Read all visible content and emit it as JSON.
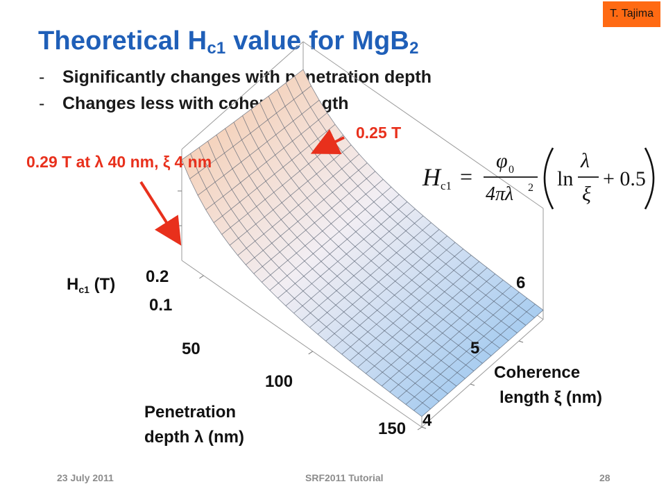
{
  "author": "T. Tajima",
  "title": {
    "text": "Theoretical H",
    "sub1": "c1",
    "text2": " value for MgB",
    "sub2": "2"
  },
  "bullets": [
    "Significantly changes with penetration depth",
    "Changes less with coherent length"
  ],
  "bullet_marker": "-",
  "callouts": {
    "corner_far": "0.25 T",
    "corner_near": "0.29 T at λ 40 nm, ξ 4 nm"
  },
  "formula": {
    "lhs": "H",
    "lhs_sub": "c1",
    "num": "φ",
    "num_sub": "0",
    "den": "4πλ",
    "den_sup": "2",
    "ln": "ln",
    "frac_num": "λ",
    "frac_den": "ξ",
    "plus": "+ 0.5"
  },
  "chart_data": {
    "type": "surface",
    "title": "",
    "z_label": "H",
    "z_label_sub": "c1",
    "z_label_unit": "(T)",
    "x_label_line1": "Penetration",
    "x_label_line2": "depth λ (nm)",
    "y_label_line1": "Coherence",
    "y_label_line2": "length ξ (nm)",
    "x_ticks": [
      "50",
      "100",
      "150"
    ],
    "y_ticks": [
      "6",
      "5",
      "4"
    ],
    "z_ticks": [
      "0.2",
      "0.1"
    ],
    "x_range": [
      40,
      150
    ],
    "y_range": [
      4,
      6.5
    ],
    "z_range": [
      0,
      0.3
    ],
    "function": "Hc1 = φ0/(4πλ²)·(ln(λ/ξ)+0.5)",
    "corner_values": [
      {
        "lambda_nm": 40,
        "xi_nm": 4,
        "Hc1_T": 0.29
      },
      {
        "lambda_nm": 40,
        "xi_nm": 6.5,
        "Hc1_T": 0.25
      }
    ],
    "colors": {
      "high": "#f6c7a5",
      "low": "#8cc0ef",
      "mesh": "#556070"
    }
  },
  "footer": {
    "date": "23 July 2011",
    "event": "SRF2011 Tutorial",
    "page": "28"
  }
}
